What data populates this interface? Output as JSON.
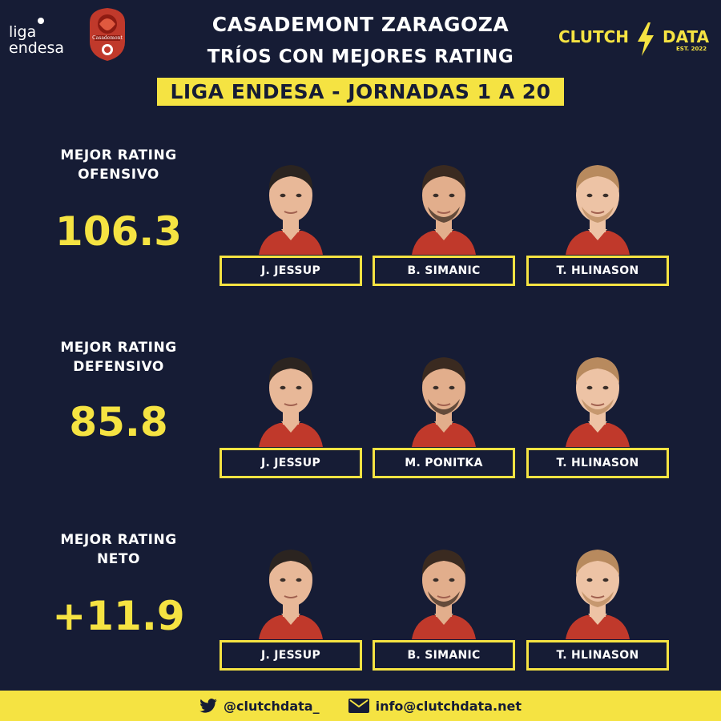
{
  "header": {
    "title": "CASADEMONT ZARAGOZA",
    "subtitle": "TRÍOS CON MEJORES RATING",
    "banner": "LIGA ENDESA - JORNADAS 1 A 20"
  },
  "logos": {
    "league_line1": "liga",
    "league_line2": "endesa",
    "team_name": "Casademont",
    "brand_left": "CLUTCH",
    "brand_right": "DATA",
    "brand_est": "EST. 2022"
  },
  "ratings": [
    {
      "label_line1": "MEJOR RATING",
      "label_line2": "OFENSIVO",
      "value": "106.3",
      "players": [
        "J. JESSUP",
        "B. SIMANIC",
        "T. HLINASON"
      ]
    },
    {
      "label_line1": "MEJOR RATING",
      "label_line2": "DEFENSIVO",
      "value": "85.8",
      "players": [
        "J. JESSUP",
        "M. PONITKA",
        "T. HLINASON"
      ]
    },
    {
      "label_line1": "MEJOR RATING",
      "label_line2": "NETO",
      "value": "+11.9",
      "players": [
        "J. JESSUP",
        "B. SIMANIC",
        "T. HLINASON"
      ]
    }
  ],
  "footer": {
    "twitter_icon": "twitter-bird-icon",
    "twitter": "@clutchdata_",
    "mail_icon": "envelope-icon",
    "email": "info@clutchdata.net"
  },
  "colors": {
    "background": "#161c35",
    "accent": "#f5e342",
    "jersey": "#c0392b"
  }
}
